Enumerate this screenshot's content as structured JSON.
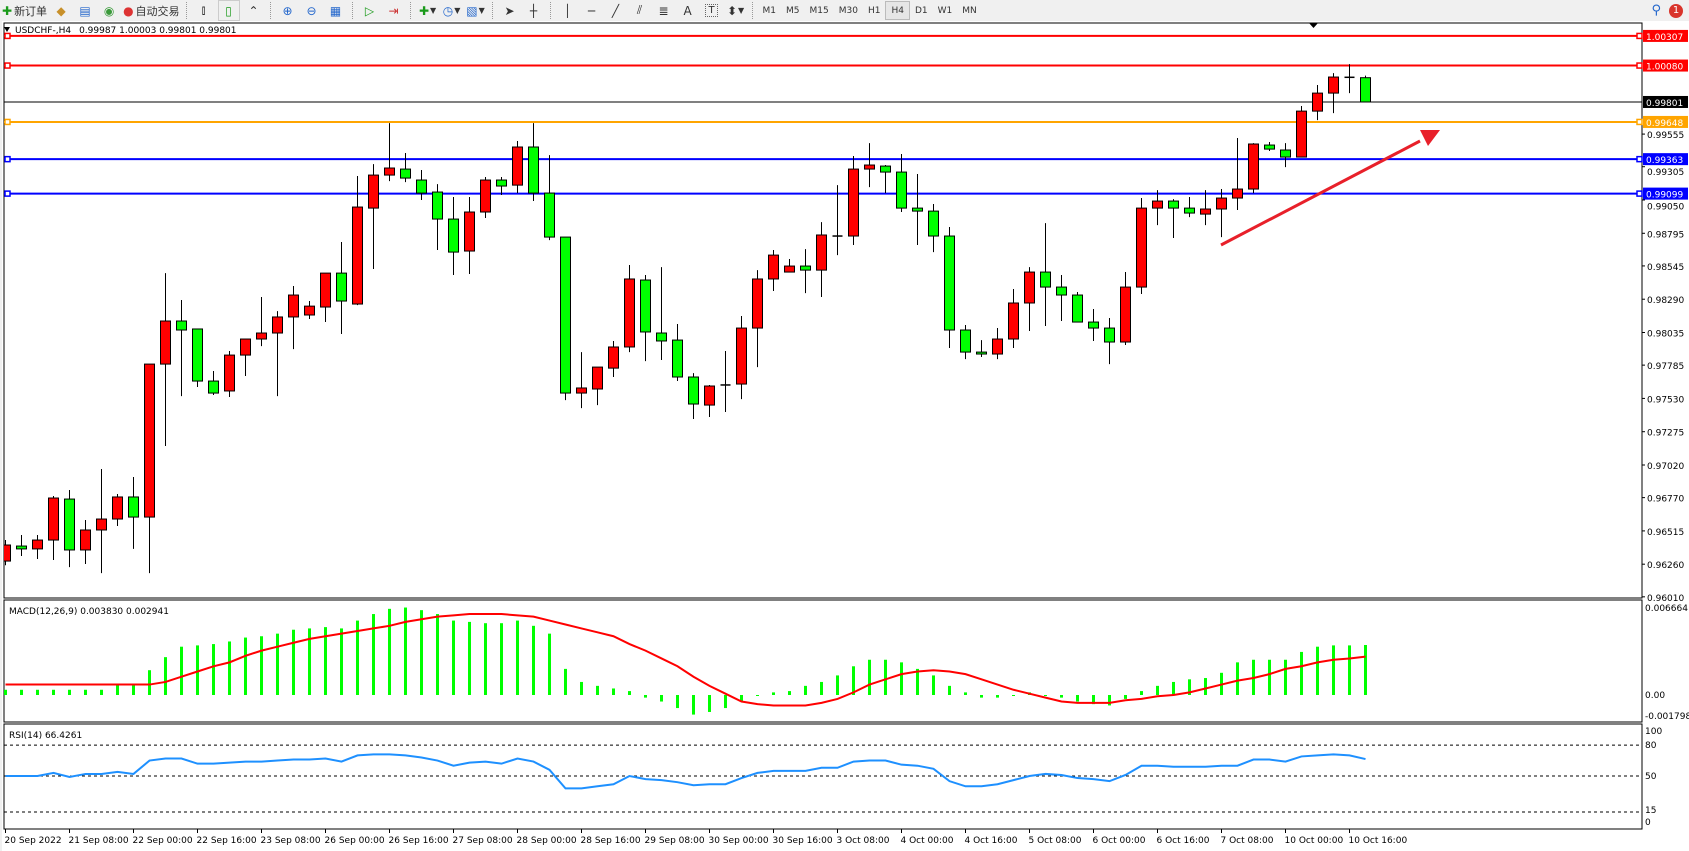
{
  "toolbar": {
    "new_order_label": "新订单",
    "autotrading_label": "自动交易",
    "periods": [
      "M1",
      "M5",
      "M15",
      "M30",
      "H1",
      "H4",
      "D1",
      "W1",
      "MN"
    ],
    "active_period": "H4",
    "notification_count": "1",
    "icons": [
      "new-order-icon",
      "meta-editor-icon",
      "history-center-icon",
      "signals-icon",
      "autotrading-icon",
      "bar-chart-icon",
      "candlesticks-icon",
      "line-chart-icon",
      "zoom-in-icon",
      "zoom-out-icon",
      "tile-windows-icon",
      "auto-scroll-icon",
      "chart-shift-icon",
      "indicators-icon",
      "periodicity-icon",
      "templates-icon",
      "cursor-icon",
      "crosshair-icon",
      "vertical-line-icon",
      "horizontal-line-icon",
      "trendline-icon",
      "equidistant-channel-icon",
      "fibonacci-icon",
      "text-icon",
      "text-label-icon",
      "arrows-icon",
      "search-icon",
      "notification-icon"
    ]
  },
  "chart": {
    "symbol": "USDCHF-,H4",
    "ohlc_text": "0.99987 1.00003 0.99801 0.99801"
  },
  "chart_data": {
    "type": "candlestick",
    "symbol": "USDCHF-",
    "timeframe": "H4",
    "up_color": "#ff0000",
    "down_color": "#00ff00",
    "ylim": [
      0.96001,
      1.00406
    ],
    "price_ticks": [
      "0.99555",
      "0.99305",
      "0.99050",
      "0.98795",
      "0.98545",
      "0.98290",
      "0.98035",
      "0.97785",
      "0.97530",
      "0.97275",
      "0.97020",
      "0.96770",
      "0.96515",
      "0.96260",
      "0.96010"
    ],
    "time_labels": [
      "20 Sep 2022",
      "21 Sep 08:00",
      "22 Sep 00:00",
      "22 Sep 16:00",
      "23 Sep 08:00",
      "26 Sep 00:00",
      "26 Sep 16:00",
      "27 Sep 08:00",
      "28 Sep 00:00",
      "28 Sep 16:00",
      "29 Sep 08:00",
      "30 Sep 00:00",
      "30 Sep 16:00",
      "3 Oct 08:00",
      "4 Oct 00:00",
      "4 Oct 16:00",
      "5 Oct 08:00",
      "6 Oct 00:00",
      "6 Oct 16:00",
      "7 Oct 08:00",
      "10 Oct 00:00",
      "10 Oct 16:00"
    ],
    "levels": [
      {
        "price": "1.00307",
        "color": "#ff0000"
      },
      {
        "price": "1.00080",
        "color": "#ff0000"
      },
      {
        "price": "0.99648",
        "color": "#ffa500"
      },
      {
        "price": "0.99363",
        "color": "#0000ff"
      },
      {
        "price": "0.99099",
        "color": "#0000ff"
      }
    ],
    "current_price": "0.99801",
    "trend_arrow_color": "#e8202a",
    "ohlc": [
      [
        0.96284,
        0.96445,
        0.96252,
        0.96407
      ],
      [
        0.96399,
        0.96484,
        0.96323,
        0.96377
      ],
      [
        0.96377,
        0.96484,
        0.963,
        0.96445
      ],
      [
        0.96445,
        0.96782,
        0.96292,
        0.96767
      ],
      [
        0.96759,
        0.96828,
        0.96238,
        0.96369
      ],
      [
        0.96369,
        0.96599,
        0.96261,
        0.96522
      ],
      [
        0.96522,
        0.96989,
        0.96192,
        0.96606
      ],
      [
        0.96606,
        0.96798,
        0.96553,
        0.96775
      ],
      [
        0.96775,
        0.96928,
        0.96377,
        0.96621
      ],
      [
        0.96621,
        0.97793,
        0.96192,
        0.97793
      ],
      [
        0.97793,
        0.9849,
        0.97165,
        0.98123
      ],
      [
        0.98123,
        0.98284,
        0.97548,
        0.98054
      ],
      [
        0.98062,
        0.98062,
        0.97617,
        0.97663
      ],
      [
        0.97663,
        0.9774,
        0.97556,
        0.97571
      ],
      [
        0.97587,
        0.97893,
        0.97541,
        0.97862
      ],
      [
        0.97862,
        0.97985,
        0.97702,
        0.97985
      ],
      [
        0.97985,
        0.98307,
        0.97931,
        0.98031
      ],
      [
        0.98031,
        0.98199,
        0.97548,
        0.98154
      ],
      [
        0.98154,
        0.98391,
        0.97908,
        0.98322
      ],
      [
        0.98169,
        0.98276,
        0.98138,
        0.98237
      ],
      [
        0.9823,
        0.9849,
        0.98115,
        0.9849
      ],
      [
        0.9849,
        0.98728,
        0.98023,
        0.98276
      ],
      [
        0.98253,
        0.99234,
        0.98245,
        0.98996
      ],
      [
        0.98988,
        0.99325,
        0.98521,
        0.99241
      ],
      [
        0.99241,
        0.99639,
        0.99195,
        0.99295
      ],
      [
        0.99287,
        0.9941,
        0.99187,
        0.99218
      ],
      [
        0.99203,
        0.9928,
        0.9905,
        0.99103
      ],
      [
        0.99111,
        0.99172,
        0.98667,
        0.98904
      ],
      [
        0.98904,
        0.99073,
        0.98475,
        0.98651
      ],
      [
        0.98659,
        0.99073,
        0.98483,
        0.98958
      ],
      [
        0.98958,
        0.99226,
        0.98912,
        0.99203
      ],
      [
        0.99203,
        0.99226,
        0.99088,
        0.99157
      ],
      [
        0.99164,
        0.99502,
        0.99103,
        0.99456
      ],
      [
        0.99456,
        0.99639,
        0.99042,
        0.99103
      ],
      [
        0.99103,
        0.99394,
        0.98743,
        0.98766
      ],
      [
        0.98766,
        0.98766,
        0.97517,
        0.97571
      ],
      [
        0.97571,
        0.97885,
        0.97456,
        0.9761
      ],
      [
        0.97602,
        0.9777,
        0.97479,
        0.9777
      ],
      [
        0.97762,
        0.9797,
        0.97694,
        0.97924
      ],
      [
        0.97924,
        0.98552,
        0.97885,
        0.98445
      ],
      [
        0.98437,
        0.98475,
        0.97816,
        0.98039
      ],
      [
        0.98031,
        0.98536,
        0.97824,
        0.9797
      ],
      [
        0.97977,
        0.981,
        0.97663,
        0.97694
      ],
      [
        0.97694,
        0.97724,
        0.97372,
        0.97487
      ],
      [
        0.97479,
        0.97633,
        0.97388,
        0.97625
      ],
      [
        0.97633,
        0.97893,
        0.97426,
        0.97633
      ],
      [
        0.9764,
        0.98161,
        0.97525,
        0.98069
      ],
      [
        0.98069,
        0.98513,
        0.9777,
        0.98445
      ],
      [
        0.98445,
        0.98667,
        0.98353,
        0.98628
      ],
      [
        0.98498,
        0.98598,
        0.98498,
        0.98544
      ],
      [
        0.98544,
        0.98674,
        0.98337,
        0.98513
      ],
      [
        0.98513,
        0.98881,
        0.98307,
        0.98782
      ],
      [
        0.98774,
        0.99164,
        0.98628,
        0.98774
      ],
      [
        0.98774,
        0.99387,
        0.98705,
        0.99287
      ],
      [
        0.99287,
        0.99486,
        0.99149,
        0.99318
      ],
      [
        0.9931,
        0.99318,
        0.99103,
        0.99264
      ],
      [
        0.99264,
        0.99402,
        0.98958,
        0.98988
      ],
      [
        0.98988,
        0.99249,
        0.98705,
        0.98965
      ],
      [
        0.98965,
        0.99019,
        0.98651,
        0.98774
      ],
      [
        0.98774,
        0.98843,
        0.97916,
        0.98054
      ],
      [
        0.98054,
        0.98092,
        0.97831,
        0.97885
      ],
      [
        0.97885,
        0.97977,
        0.97847,
        0.9787
      ],
      [
        0.9787,
        0.98069,
        0.97831,
        0.97985
      ],
      [
        0.97985,
        0.98368,
        0.97916,
        0.98261
      ],
      [
        0.98261,
        0.98536,
        0.98046,
        0.98498
      ],
      [
        0.98498,
        0.98873,
        0.98085,
        0.98383
      ],
      [
        0.98383,
        0.98475,
        0.98123,
        0.98322
      ],
      [
        0.98322,
        0.98345,
        0.98115,
        0.98115
      ],
      [
        0.98115,
        0.98215,
        0.9797,
        0.98069
      ],
      [
        0.98069,
        0.98146,
        0.97793,
        0.97962
      ],
      [
        0.97962,
        0.98498,
        0.97939,
        0.98383
      ],
      [
        0.98383,
        0.99065,
        0.9833,
        0.98988
      ],
      [
        0.98988,
        0.99126,
        0.98858,
        0.99042
      ],
      [
        0.99042,
        0.99057,
        0.98759,
        0.98988
      ],
      [
        0.98988,
        0.99073,
        0.98919,
        0.9895
      ],
      [
        0.98942,
        0.99126,
        0.98858,
        0.98981
      ],
      [
        0.98981,
        0.99134,
        0.98766,
        0.99065
      ],
      [
        0.99065,
        0.99525,
        0.98973,
        0.99134
      ],
      [
        0.99134,
        0.99486,
        0.99103,
        0.99479
      ],
      [
        0.99471,
        0.99494,
        0.99425,
        0.9944
      ],
      [
        0.99433,
        0.99486,
        0.99302,
        0.99379
      ],
      [
        0.99379,
        0.9977,
        0.99379,
        0.99731
      ],
      [
        0.99731,
        0.99931,
        0.99662,
        0.99869
      ],
      [
        0.99869,
        1.00022,
        0.99716,
        0.99992
      ],
      [
        0.9999,
        1.00091,
        0.99869,
        0.9999
      ],
      [
        0.99987,
        1.00003,
        0.99801,
        0.99801
      ]
    ]
  },
  "macd": {
    "label": "MACD(12,26,9) 0.003830 0.002941",
    "ticks": [
      "0.006664",
      "0.00",
      "-0.001798"
    ],
    "ylim": [
      -0.001798,
      0.006664
    ],
    "histogram_color": "#00ff00",
    "signal_color": "#ff0000",
    "histogram": [
      0.0004,
      0.0004,
      0.0004,
      0.0004,
      0.0004,
      0.0004,
      0.0004,
      0.0008,
      0.0008,
      0.0019,
      0.0029,
      0.0037,
      0.0038,
      0.0039,
      0.0041,
      0.0044,
      0.0045,
      0.0047,
      0.005,
      0.0051,
      0.0052,
      0.0051,
      0.0057,
      0.0062,
      0.0066,
      0.0067,
      0.0065,
      0.0062,
      0.0057,
      0.0056,
      0.0055,
      0.0055,
      0.0057,
      0.0053,
      0.0047,
      0.002,
      0.001,
      0.0007,
      0.0005,
      0.0003,
      -0.0002,
      -0.0005,
      -0.001,
      -0.0015,
      -0.0013,
      -0.001,
      -0.0005,
      0.0,
      0.0002,
      0.0003,
      0.0007,
      0.001,
      0.0015,
      0.0022,
      0.0027,
      0.0027,
      0.0025,
      0.002,
      0.0015,
      0.0007,
      0.0002,
      -0.0002,
      -0.0002,
      0.0,
      0.0002,
      0.0,
      -0.0002,
      -0.0005,
      -0.0007,
      -0.0008,
      -0.0003,
      0.0003,
      0.0007,
      0.001,
      0.0012,
      0.0013,
      0.0017,
      0.0025,
      0.0027,
      0.0027,
      0.0027,
      0.0033,
      0.0037,
      0.0038,
      0.0038,
      0.00383
    ],
    "signal": [
      0.0008,
      0.0008,
      0.0008,
      0.0008,
      0.0008,
      0.0008,
      0.0008,
      0.0008,
      0.0008,
      0.0008,
      0.001,
      0.0014,
      0.0018,
      0.0022,
      0.0025,
      0.003,
      0.0034,
      0.0037,
      0.004,
      0.0043,
      0.0045,
      0.0047,
      0.0049,
      0.0051,
      0.0053,
      0.0056,
      0.0058,
      0.006,
      0.0061,
      0.0062,
      0.0062,
      0.0062,
      0.0061,
      0.006,
      0.0057,
      0.0054,
      0.0051,
      0.0048,
      0.0045,
      0.0039,
      0.0034,
      0.0028,
      0.0022,
      0.0014,
      0.0007,
      0.0001,
      -0.0005,
      -0.0007,
      -0.0008,
      -0.0008,
      -0.0008,
      -0.0006,
      -0.0003,
      0.0002,
      0.0008,
      0.0012,
      0.0016,
      0.0018,
      0.0019,
      0.0018,
      0.0016,
      0.0012,
      0.0008,
      0.0004,
      0.0001,
      -0.0002,
      -0.0005,
      -0.0006,
      -0.0006,
      -0.0006,
      -0.0004,
      -0.0003,
      -0.0001,
      0.0,
      0.0002,
      0.0005,
      0.0008,
      0.0011,
      0.0013,
      0.0016,
      0.002,
      0.0022,
      0.0025,
      0.0027,
      0.0028,
      0.002941
    ]
  },
  "rsi": {
    "label": "RSI(14) 66.4261",
    "ticks": [
      "100",
      "80",
      "50",
      "15",
      "0"
    ],
    "levels": [
      80,
      50,
      15
    ],
    "color": "#1e90ff",
    "values": [
      50,
      50,
      50,
      53,
      49,
      52,
      52,
      54,
      52,
      65,
      67,
      67,
      62,
      62,
      63,
      64,
      64,
      65,
      66,
      66,
      67,
      64,
      70,
      71,
      71,
      70,
      68,
      65,
      60,
      63,
      64,
      62,
      67,
      64,
      56,
      38,
      38,
      40,
      42,
      50,
      47,
      46,
      44,
      41,
      42,
      42,
      48,
      53,
      55,
      55,
      55,
      58,
      58,
      64,
      65,
      65,
      61,
      60,
      57,
      45,
      40,
      40,
      42,
      46,
      50,
      52,
      51,
      48,
      47,
      45,
      51,
      60,
      60,
      59,
      59,
      59,
      60,
      60,
      66,
      66,
      64,
      69,
      70,
      71,
      70,
      66.4261
    ]
  }
}
